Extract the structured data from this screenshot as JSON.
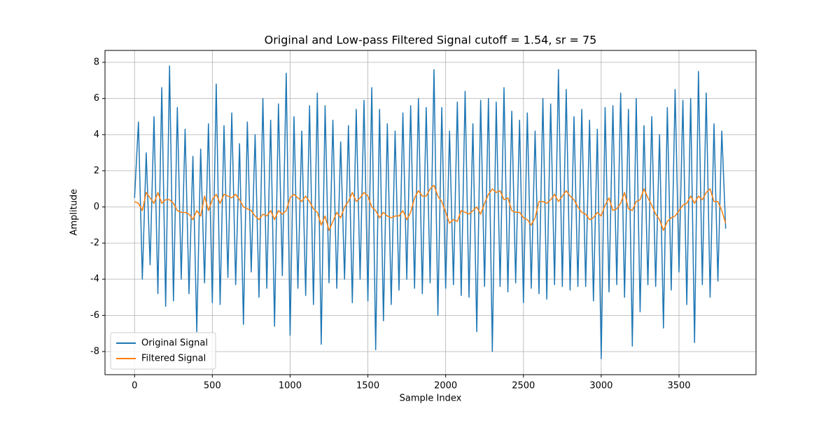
{
  "chart_data": {
    "type": "line",
    "title": "Original and Low-pass Filtered Signal cutoff = 1.54, sr = 75",
    "x_label": "Sample Index",
    "y_label": "Amplitude",
    "x": [
      0,
      25,
      50,
      75,
      100,
      125,
      150,
      175,
      200,
      225,
      250,
      275,
      300,
      325,
      350,
      375,
      400,
      425,
      450,
      475,
      500,
      525,
      550,
      575,
      600,
      625,
      650,
      675,
      700,
      725,
      750,
      775,
      800,
      825,
      850,
      875,
      900,
      925,
      950,
      975,
      1000,
      1025,
      1050,
      1075,
      1100,
      1125,
      1150,
      1175,
      1200,
      1225,
      1250,
      1275,
      1300,
      1325,
      1350,
      1375,
      1400,
      1425,
      1450,
      1475,
      1500,
      1525,
      1550,
      1575,
      1600,
      1625,
      1650,
      1675,
      1700,
      1725,
      1750,
      1775,
      1800,
      1825,
      1850,
      1875,
      1900,
      1925,
      1950,
      1975,
      2000,
      2025,
      2050,
      2075,
      2100,
      2125,
      2150,
      2175,
      2200,
      2225,
      2250,
      2275,
      2300,
      2325,
      2350,
      2375,
      2400,
      2425,
      2450,
      2475,
      2500,
      2525,
      2550,
      2575,
      2600,
      2625,
      2650,
      2675,
      2700,
      2725,
      2750,
      2775,
      2800,
      2825,
      2850,
      2875,
      2900,
      2925,
      2950,
      2975,
      3000,
      3025,
      3050,
      3075,
      3100,
      3125,
      3150,
      3175,
      3200,
      3225,
      3250,
      3275,
      3300,
      3325,
      3350,
      3375,
      3400,
      3425,
      3450,
      3475,
      3500,
      3525,
      3550,
      3575,
      3600,
      3625,
      3650,
      3675,
      3700,
      3725,
      3750,
      3775,
      3800
    ],
    "series": [
      {
        "name": "Original Signal",
        "color": "#1f77b4",
        "values": [
          0.5,
          4.7,
          -4.0,
          3.0,
          -3.2,
          5.0,
          -4.8,
          6.6,
          -5.5,
          7.8,
          -5.2,
          5.5,
          -4.0,
          4.3,
          -4.8,
          2.8,
          -6.9,
          3.2,
          -4.2,
          4.6,
          -5.3,
          6.8,
          -5.4,
          4.5,
          -3.9,
          5.2,
          -4.3,
          3.5,
          -6.5,
          4.7,
          -3.6,
          4.0,
          -5.0,
          6.0,
          -4.5,
          4.8,
          -6.6,
          5.7,
          -3.8,
          7.4,
          -7.1,
          5.0,
          -4.5,
          4.2,
          -4.9,
          5.6,
          -5.4,
          6.3,
          -7.6,
          5.6,
          -4.2,
          4.8,
          -4.5,
          3.6,
          -4.0,
          4.5,
          -5.3,
          5.4,
          -4.0,
          5.9,
          -5.2,
          6.6,
          -7.9,
          5.4,
          -6.3,
          4.6,
          -5.4,
          4.2,
          -4.6,
          5.2,
          -4.0,
          5.6,
          -4.5,
          6.0,
          -4.8,
          5.5,
          -4.2,
          7.6,
          -6.0,
          5.5,
          -4.5,
          4.2,
          -4.3,
          5.8,
          -4.9,
          6.4,
          -5.0,
          4.6,
          -6.9,
          5.9,
          -4.4,
          6.0,
          -8.0,
          5.8,
          -4.4,
          6.6,
          -4.7,
          5.3,
          -4.2,
          4.8,
          -5.3,
          5.2,
          -4.5,
          4.2,
          -4.8,
          6.0,
          -5.1,
          5.7,
          -4.3,
          7.6,
          -4.4,
          6.5,
          -4.6,
          5.0,
          -4.4,
          5.4,
          -4.4,
          4.8,
          -5.2,
          4.3,
          -8.4,
          5.5,
          -4.7,
          5.6,
          -4.3,
          6.3,
          -5.0,
          5.4,
          -7.7,
          6.0,
          -5.8,
          4.5,
          -4.3,
          5.0,
          -4.4,
          4.0,
          -6.7,
          5.5,
          -4.6,
          6.5,
          -3.6,
          5.9,
          -5.4,
          6.0,
          -7.5,
          7.5,
          -4.3,
          6.3,
          -5.0,
          4.6,
          -4.1,
          4.2,
          -1.2
        ]
      },
      {
        "name": "Filtered Signal",
        "color": "#ff7f0e",
        "values": [
          0.3,
          0.2,
          -0.2,
          0.8,
          0.5,
          0.2,
          0.8,
          0.2,
          0.4,
          0.4,
          0.2,
          -0.2,
          -0.3,
          -0.3,
          -0.4,
          -0.7,
          -0.2,
          -0.5,
          0.6,
          -0.2,
          0.4,
          0.7,
          0.2,
          0.7,
          0.6,
          0.5,
          0.7,
          0.4,
          0.0,
          -0.1,
          -0.2,
          -0.5,
          -0.7,
          -0.4,
          -0.5,
          -0.2,
          -0.7,
          -0.2,
          -0.4,
          -0.2,
          0.5,
          0.7,
          0.5,
          0.3,
          0.6,
          0.3,
          -0.1,
          -0.3,
          -1.0,
          -0.5,
          -1.3,
          -0.8,
          -0.3,
          -0.6,
          0.0,
          0.3,
          0.8,
          0.3,
          0.5,
          0.8,
          0.6,
          0.0,
          -0.2,
          -0.6,
          -0.3,
          -0.5,
          -0.6,
          -0.5,
          -0.5,
          -0.2,
          -0.7,
          -0.3,
          0.5,
          0.9,
          0.6,
          0.6,
          1.0,
          1.2,
          0.6,
          0.3,
          -0.3,
          -0.9,
          -0.7,
          -0.8,
          -0.2,
          -0.3,
          -0.4,
          -0.2,
          0.0,
          -0.4,
          0.2,
          0.7,
          1.0,
          0.8,
          0.9,
          0.4,
          0.5,
          -0.2,
          -0.3,
          -0.3,
          -0.6,
          -0.7,
          -1.0,
          -0.6,
          0.3,
          0.3,
          0.2,
          0.4,
          0.7,
          0.3,
          0.6,
          0.9,
          0.6,
          0.4,
          0.0,
          -0.3,
          -0.4,
          -0.7,
          -0.6,
          -0.3,
          -0.5,
          0.1,
          0.5,
          -0.2,
          -0.1,
          0.2,
          0.8,
          -0.1,
          -0.2,
          0.3,
          0.4,
          1.0,
          0.5,
          0.1,
          -0.4,
          -0.7,
          -1.3,
          -0.8,
          -0.6,
          -0.5,
          -0.2,
          0.1,
          0.2,
          0.6,
          0.2,
          0.6,
          0.4,
          0.8,
          1.0,
          0.3,
          0.3,
          -0.2,
          -0.9
        ]
      }
    ],
    "xlim": [
      -190,
      3995
    ],
    "ylim": [
      -9.28,
      8.66
    ],
    "xticks": [
      0,
      500,
      1000,
      1500,
      2000,
      2500,
      3000,
      3500
    ],
    "yticks": [
      -8,
      -6,
      -4,
      -2,
      0,
      2,
      4,
      6,
      8
    ],
    "grid": true,
    "legend": "lower left"
  }
}
